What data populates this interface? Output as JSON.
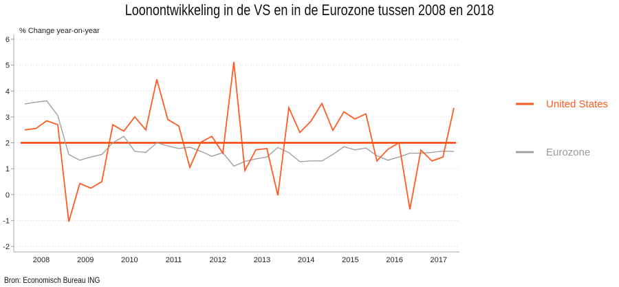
{
  "chart_data": {
    "type": "line",
    "title": "Loonontwikkeling in de VS en in de Eurozone tussen 2008 en 2018",
    "ylabel": "% Change year-on-year",
    "source": "Bron: Economisch Bureau ING",
    "ylim": [
      -2,
      6
    ],
    "yticks": [
      -2,
      -1,
      0,
      1,
      2,
      3,
      4,
      5,
      6
    ],
    "xticks": [
      "2008",
      "2009",
      "2010",
      "2011",
      "2012",
      "2013",
      "2014",
      "2015",
      "2016",
      "2017"
    ],
    "x_start": "2008 Q1",
    "frequency": "quarterly",
    "grid": "horizontal dotted",
    "legend_position": "right",
    "reference_line": {
      "value": 2,
      "color": "#ff3d00"
    },
    "series": [
      {
        "name": "United States",
        "color": "#ff5a1f",
        "values": [
          2.5,
          2.55,
          2.85,
          2.7,
          -1.05,
          0.43,
          0.25,
          0.5,
          2.7,
          2.45,
          3.0,
          2.5,
          4.45,
          2.9,
          2.65,
          1.05,
          2.02,
          2.25,
          1.6,
          5.12,
          0.93,
          1.73,
          1.78,
          -0.03,
          3.35,
          2.4,
          2.83,
          3.52,
          2.48,
          3.2,
          2.92,
          3.12,
          1.3,
          1.75,
          2.0,
          -0.57,
          1.72,
          1.3,
          1.45,
          3.35
        ]
      },
      {
        "name": "Eurozone",
        "color": "#a0a0a0",
        "values": [
          3.5,
          3.57,
          3.62,
          3.05,
          1.55,
          1.33,
          1.45,
          1.55,
          2.0,
          2.25,
          1.67,
          1.63,
          2.0,
          1.88,
          1.78,
          1.83,
          1.67,
          1.48,
          1.62,
          1.1,
          1.28,
          1.38,
          1.45,
          1.82,
          1.62,
          1.27,
          1.3,
          1.3,
          1.55,
          1.85,
          1.73,
          1.8,
          1.5,
          1.33,
          1.45,
          1.6,
          1.6,
          1.63,
          1.68,
          1.67
        ]
      }
    ]
  }
}
